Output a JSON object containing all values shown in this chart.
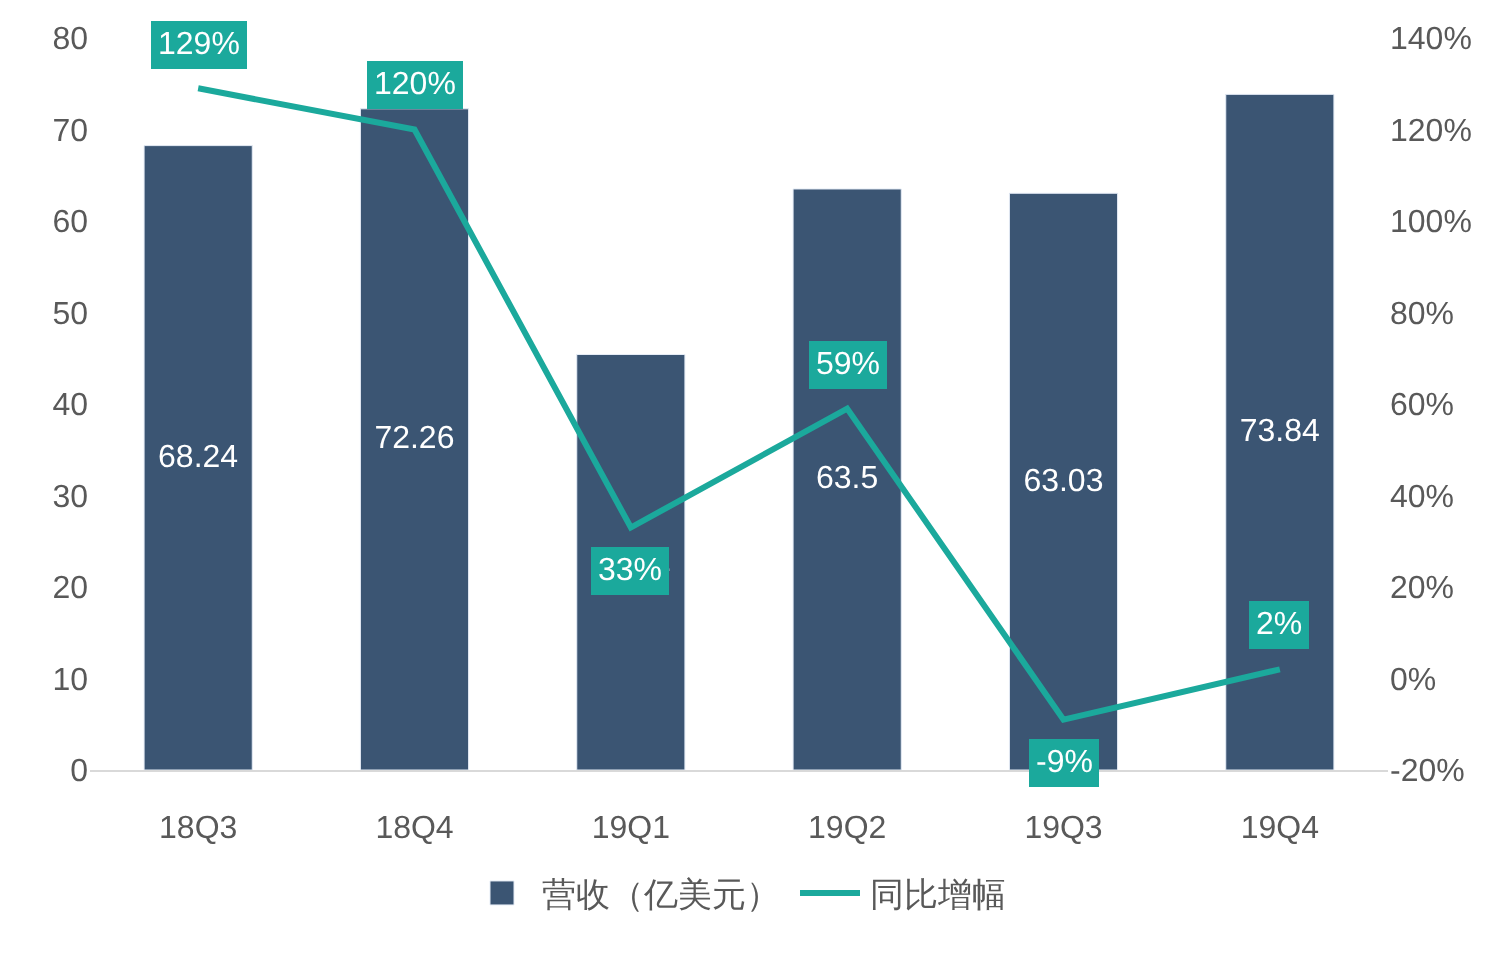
{
  "chart_data": {
    "type": "bar",
    "categories": [
      "18Q3",
      "18Q4",
      "19Q1",
      "19Q2",
      "19Q3",
      "19Q4"
    ],
    "series": [
      {
        "name": "营收（亿美元）",
        "color": "#3b5573",
        "values": [
          68.24,
          72.26,
          45.41,
          63.5,
          63.03,
          73.84
        ]
      },
      {
        "name": "同比增幅",
        "type": "line",
        "axis": "y2",
        "color": "#1ba99c",
        "marker": "none",
        "values": [
          129,
          120,
          33,
          59,
          -9,
          2
        ],
        "value_labels": [
          "129%",
          "120%",
          "33%",
          "59%",
          "-9%",
          "2%"
        ]
      }
    ],
    "data_labels": true,
    "ylim": [
      0,
      80
    ],
    "yticks": [
      0,
      10,
      20,
      30,
      40,
      50,
      60,
      70,
      80
    ],
    "y2lim": [
      -20,
      140
    ],
    "y2ticks": [
      {
        "value": -20,
        "label": "-20%"
      },
      {
        "value": 0,
        "label": "0%"
      },
      {
        "value": 20,
        "label": "20%"
      },
      {
        "value": 40,
        "label": "40%"
      },
      {
        "value": 60,
        "label": "60%"
      },
      {
        "value": 80,
        "label": "80%"
      },
      {
        "value": 100,
        "label": "100%"
      },
      {
        "value": 120,
        "label": "120%"
      },
      {
        "value": 140,
        "label": "140%"
      }
    ],
    "legend": "bottom"
  }
}
